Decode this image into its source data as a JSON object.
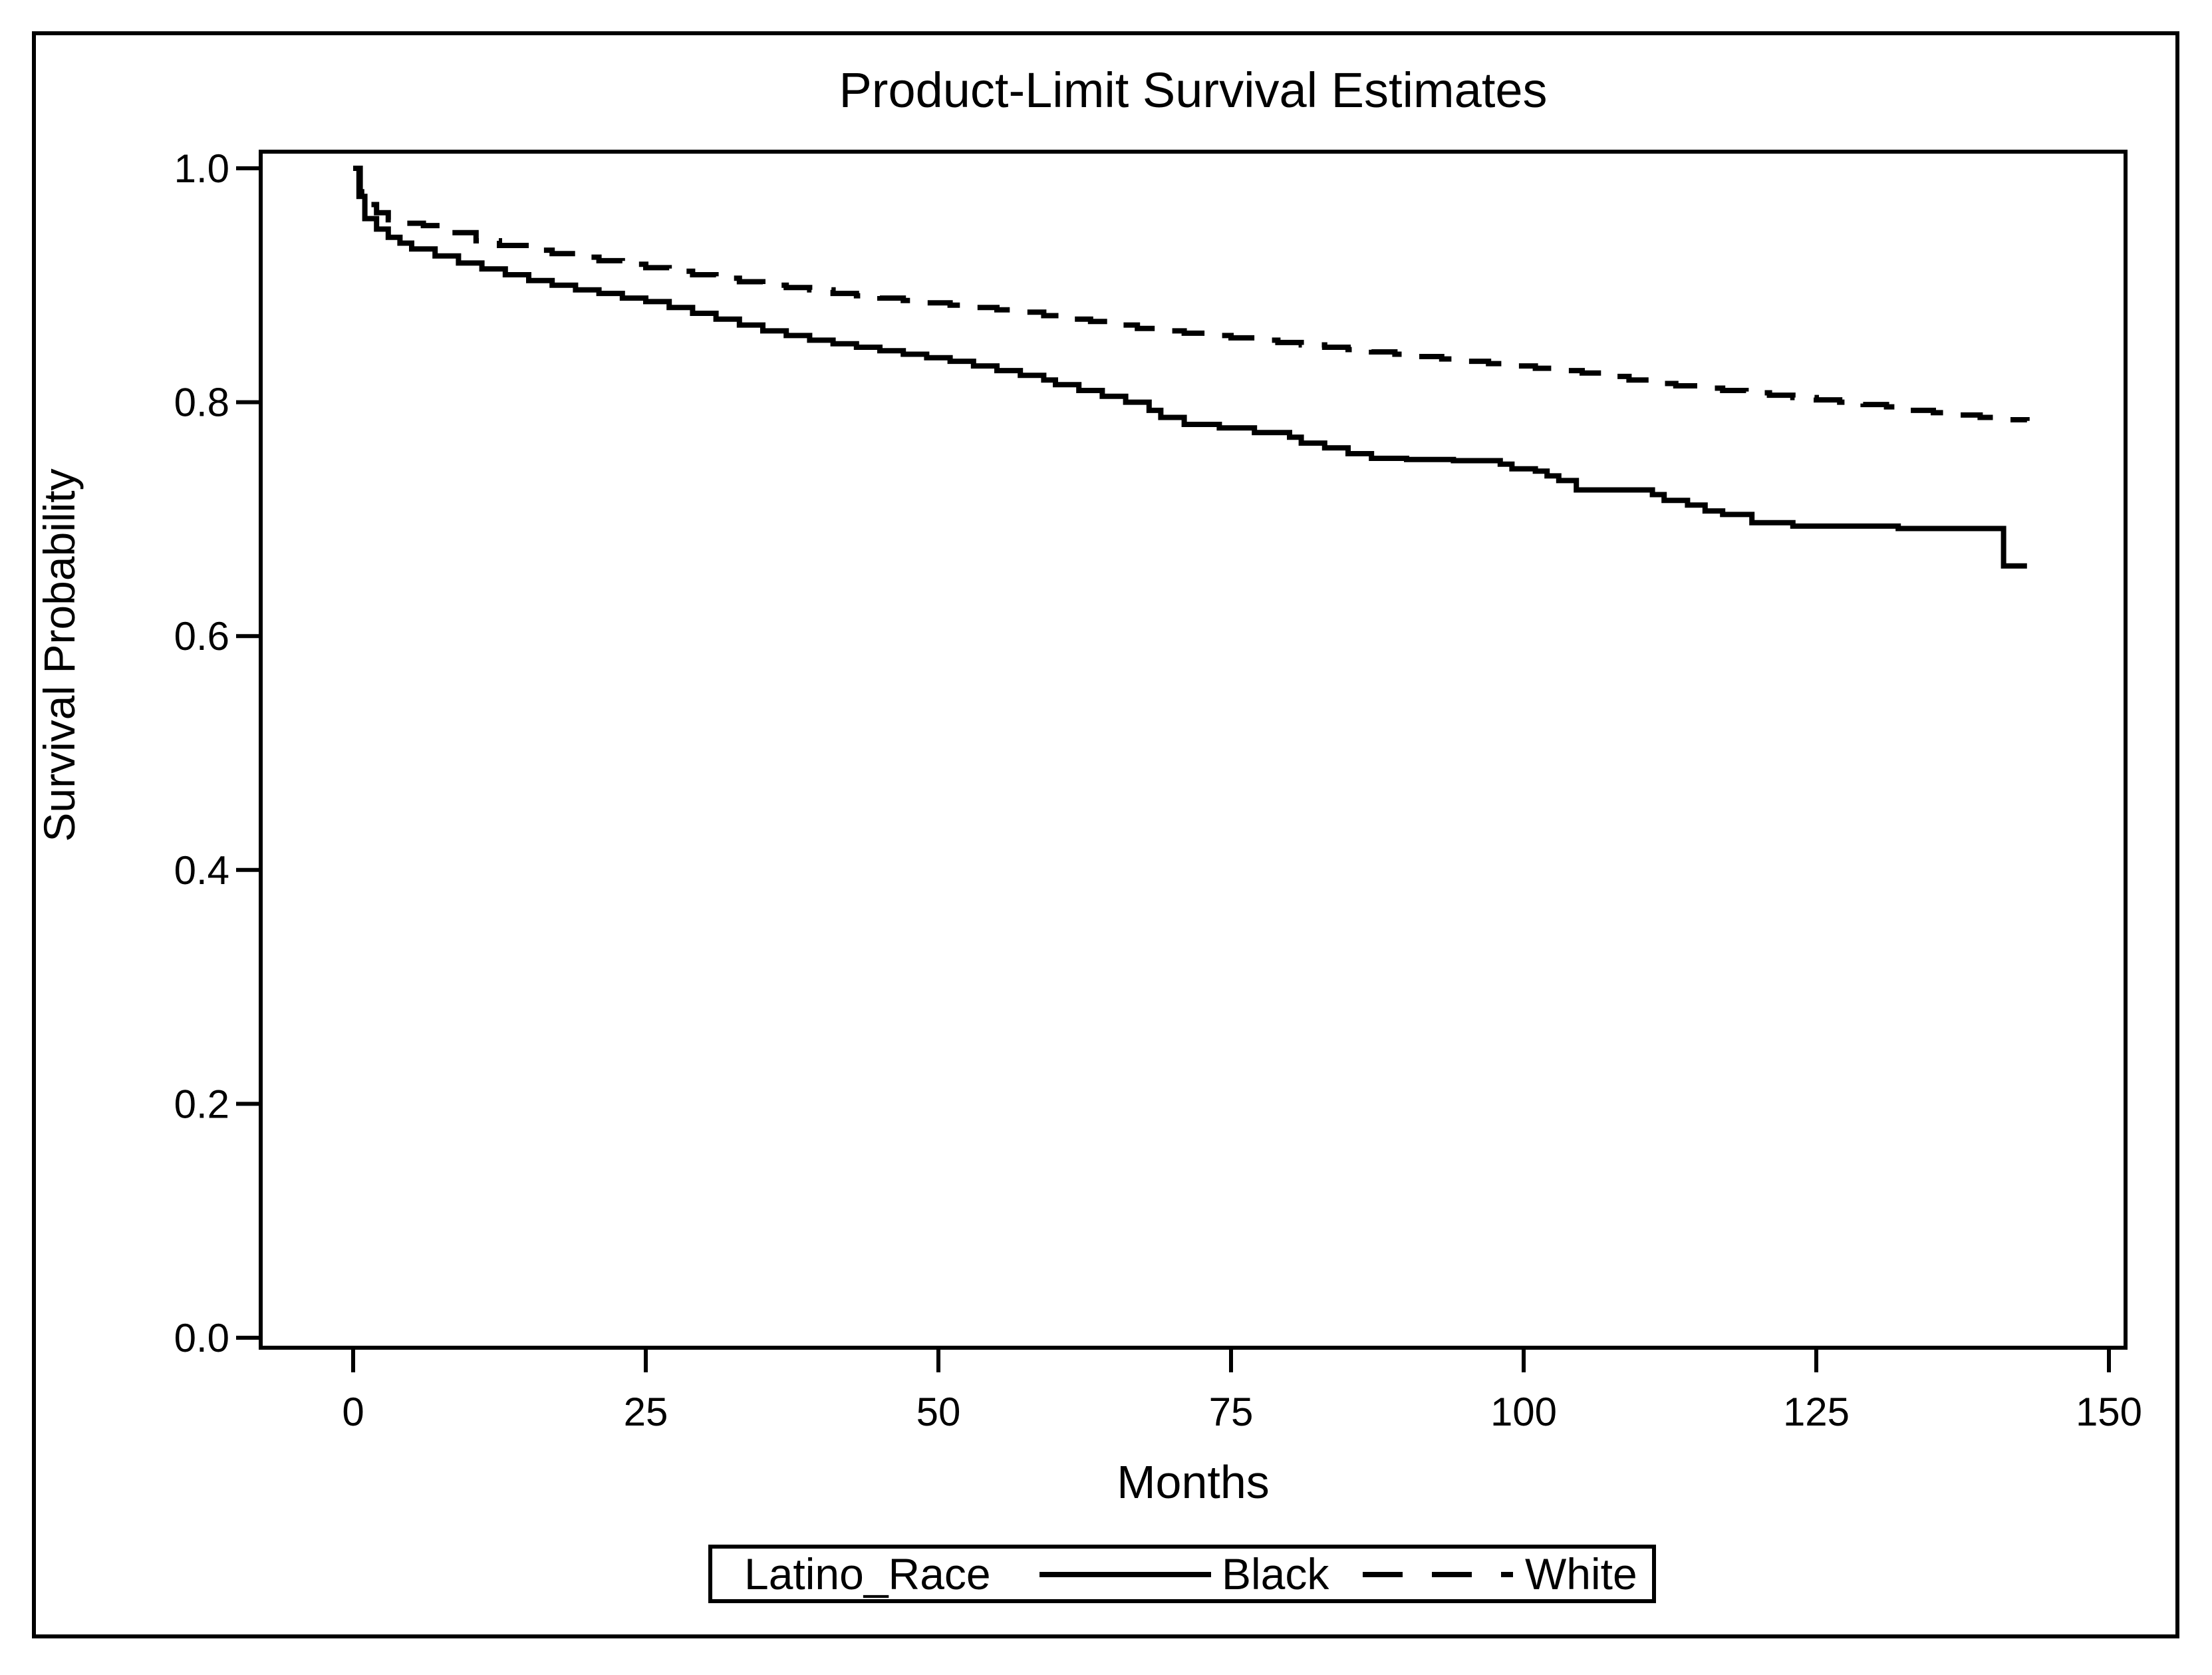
{
  "title": "Product-Limit Survival Estimates",
  "x_axis": {
    "label": "Months",
    "tick_labels": [
      "0",
      "25",
      "50",
      "75",
      "100",
      "125",
      "150"
    ],
    "tick_values": [
      0,
      25,
      50,
      75,
      100,
      125,
      150
    ]
  },
  "y_axis": {
    "label": "Survival Probability",
    "tick_labels": [
      "0.0",
      "0.2",
      "0.4",
      "0.6",
      "0.8",
      "1.0"
    ],
    "tick_values": [
      0,
      0.2,
      0.4,
      0.6,
      0.8,
      1.0
    ]
  },
  "legend": {
    "title": "Latino_Race",
    "entries": [
      {
        "label": "Black",
        "line_style": "solid"
      },
      {
        "label": "White",
        "line_style": "dashed"
      }
    ]
  },
  "colors": {
    "line": "#000000",
    "background": "#ffffff"
  },
  "chart_data": {
    "type": "line",
    "subtype": "kaplan-meier-step",
    "title": "Product-Limit Survival Estimates",
    "xlabel": "Months",
    "ylabel": "Survival Probability",
    "xlim": [
      0,
      150
    ],
    "ylim": [
      0.0,
      1.0
    ],
    "grid": false,
    "legend_position": "bottom",
    "series": [
      {
        "name": "Black",
        "style": "solid",
        "points": [
          [
            0,
            1.0
          ],
          [
            0.5,
            0.976
          ],
          [
            1,
            0.957
          ],
          [
            2,
            0.948
          ],
          [
            3,
            0.941
          ],
          [
            4,
            0.936
          ],
          [
            5,
            0.931
          ],
          [
            7,
            0.925
          ],
          [
            9,
            0.919
          ],
          [
            11,
            0.914
          ],
          [
            13,
            0.909
          ],
          [
            15,
            0.904
          ],
          [
            17,
            0.9
          ],
          [
            19,
            0.896
          ],
          [
            21,
            0.893
          ],
          [
            23,
            0.889
          ],
          [
            25,
            0.886
          ],
          [
            27,
            0.881
          ],
          [
            29,
            0.876
          ],
          [
            31,
            0.871
          ],
          [
            33,
            0.866
          ],
          [
            35,
            0.861
          ],
          [
            37,
            0.857
          ],
          [
            39,
            0.853
          ],
          [
            41,
            0.85
          ],
          [
            43,
            0.847
          ],
          [
            45,
            0.844
          ],
          [
            47,
            0.841
          ],
          [
            49,
            0.838
          ],
          [
            51,
            0.835
          ],
          [
            53,
            0.831
          ],
          [
            55,
            0.827
          ],
          [
            57,
            0.823
          ],
          [
            59,
            0.819
          ],
          [
            60,
            0.815
          ],
          [
            62,
            0.81
          ],
          [
            64,
            0.805
          ],
          [
            66,
            0.8
          ],
          [
            68,
            0.793
          ],
          [
            69,
            0.787
          ],
          [
            71,
            0.781
          ],
          [
            74,
            0.778
          ],
          [
            77,
            0.774
          ],
          [
            80,
            0.77
          ],
          [
            81,
            0.765
          ],
          [
            83,
            0.761
          ],
          [
            85,
            0.756
          ],
          [
            87,
            0.752
          ],
          [
            90,
            0.751
          ],
          [
            94,
            0.75
          ],
          [
            98,
            0.747
          ],
          [
            99,
            0.743
          ],
          [
            101,
            0.741
          ],
          [
            102,
            0.737
          ],
          [
            103,
            0.733
          ],
          [
            104.5,
            0.725
          ],
          [
            111,
            0.721
          ],
          [
            112,
            0.716
          ],
          [
            114,
            0.712
          ],
          [
            115.5,
            0.707
          ],
          [
            117,
            0.704
          ],
          [
            119.5,
            0.697
          ],
          [
            123,
            0.694
          ],
          [
            132,
            0.692
          ],
          [
            141,
            0.66
          ],
          [
            143,
            0.66
          ]
        ]
      },
      {
        "name": "White",
        "style": "dashed",
        "points": [
          [
            0,
            1.0
          ],
          [
            0.6,
            0.98
          ],
          [
            1.2,
            0.969
          ],
          [
            2,
            0.962
          ],
          [
            3,
            0.956
          ],
          [
            4.5,
            0.953
          ],
          [
            6,
            0.951
          ],
          [
            8,
            0.945
          ],
          [
            10.5,
            0.938
          ],
          [
            12.5,
            0.934
          ],
          [
            15,
            0.93
          ],
          [
            17,
            0.927
          ],
          [
            19,
            0.924
          ],
          [
            21,
            0.921
          ],
          [
            23,
            0.918
          ],
          [
            25,
            0.915
          ],
          [
            27,
            0.912
          ],
          [
            29,
            0.909
          ],
          [
            31,
            0.906
          ],
          [
            33,
            0.903
          ],
          [
            35,
            0.9
          ],
          [
            37,
            0.898
          ],
          [
            39,
            0.896
          ],
          [
            41,
            0.893
          ],
          [
            43,
            0.891
          ],
          [
            45,
            0.889
          ],
          [
            47,
            0.887
          ],
          [
            49,
            0.885
          ],
          [
            51,
            0.883
          ],
          [
            53,
            0.881
          ],
          [
            55,
            0.879
          ],
          [
            57,
            0.877
          ],
          [
            59,
            0.874
          ],
          [
            61,
            0.871
          ],
          [
            63,
            0.869
          ],
          [
            65,
            0.866
          ],
          [
            67,
            0.863
          ],
          [
            69,
            0.861
          ],
          [
            71,
            0.859
          ],
          [
            73,
            0.857
          ],
          [
            75,
            0.855
          ],
          [
            77,
            0.853
          ],
          [
            79,
            0.851
          ],
          [
            81,
            0.849
          ],
          [
            83,
            0.847
          ],
          [
            85,
            0.845
          ],
          [
            87,
            0.843
          ],
          [
            89,
            0.841
          ],
          [
            91,
            0.839
          ],
          [
            93,
            0.837
          ],
          [
            95,
            0.835
          ],
          [
            97,
            0.833
          ],
          [
            99,
            0.831
          ],
          [
            101,
            0.829
          ],
          [
            103,
            0.827
          ],
          [
            105,
            0.825
          ],
          [
            107,
            0.822
          ],
          [
            109,
            0.819
          ],
          [
            111,
            0.816
          ],
          [
            113,
            0.814
          ],
          [
            115,
            0.812
          ],
          [
            117,
            0.81
          ],
          [
            119,
            0.808
          ],
          [
            121,
            0.806
          ],
          [
            123,
            0.804
          ],
          [
            125,
            0.802
          ],
          [
            127,
            0.8
          ],
          [
            129,
            0.798
          ],
          [
            131,
            0.796
          ],
          [
            133,
            0.793
          ],
          [
            135,
            0.791
          ],
          [
            137,
            0.789
          ],
          [
            139,
            0.787
          ],
          [
            141,
            0.785
          ],
          [
            143,
            0.784
          ]
        ]
      }
    ]
  }
}
